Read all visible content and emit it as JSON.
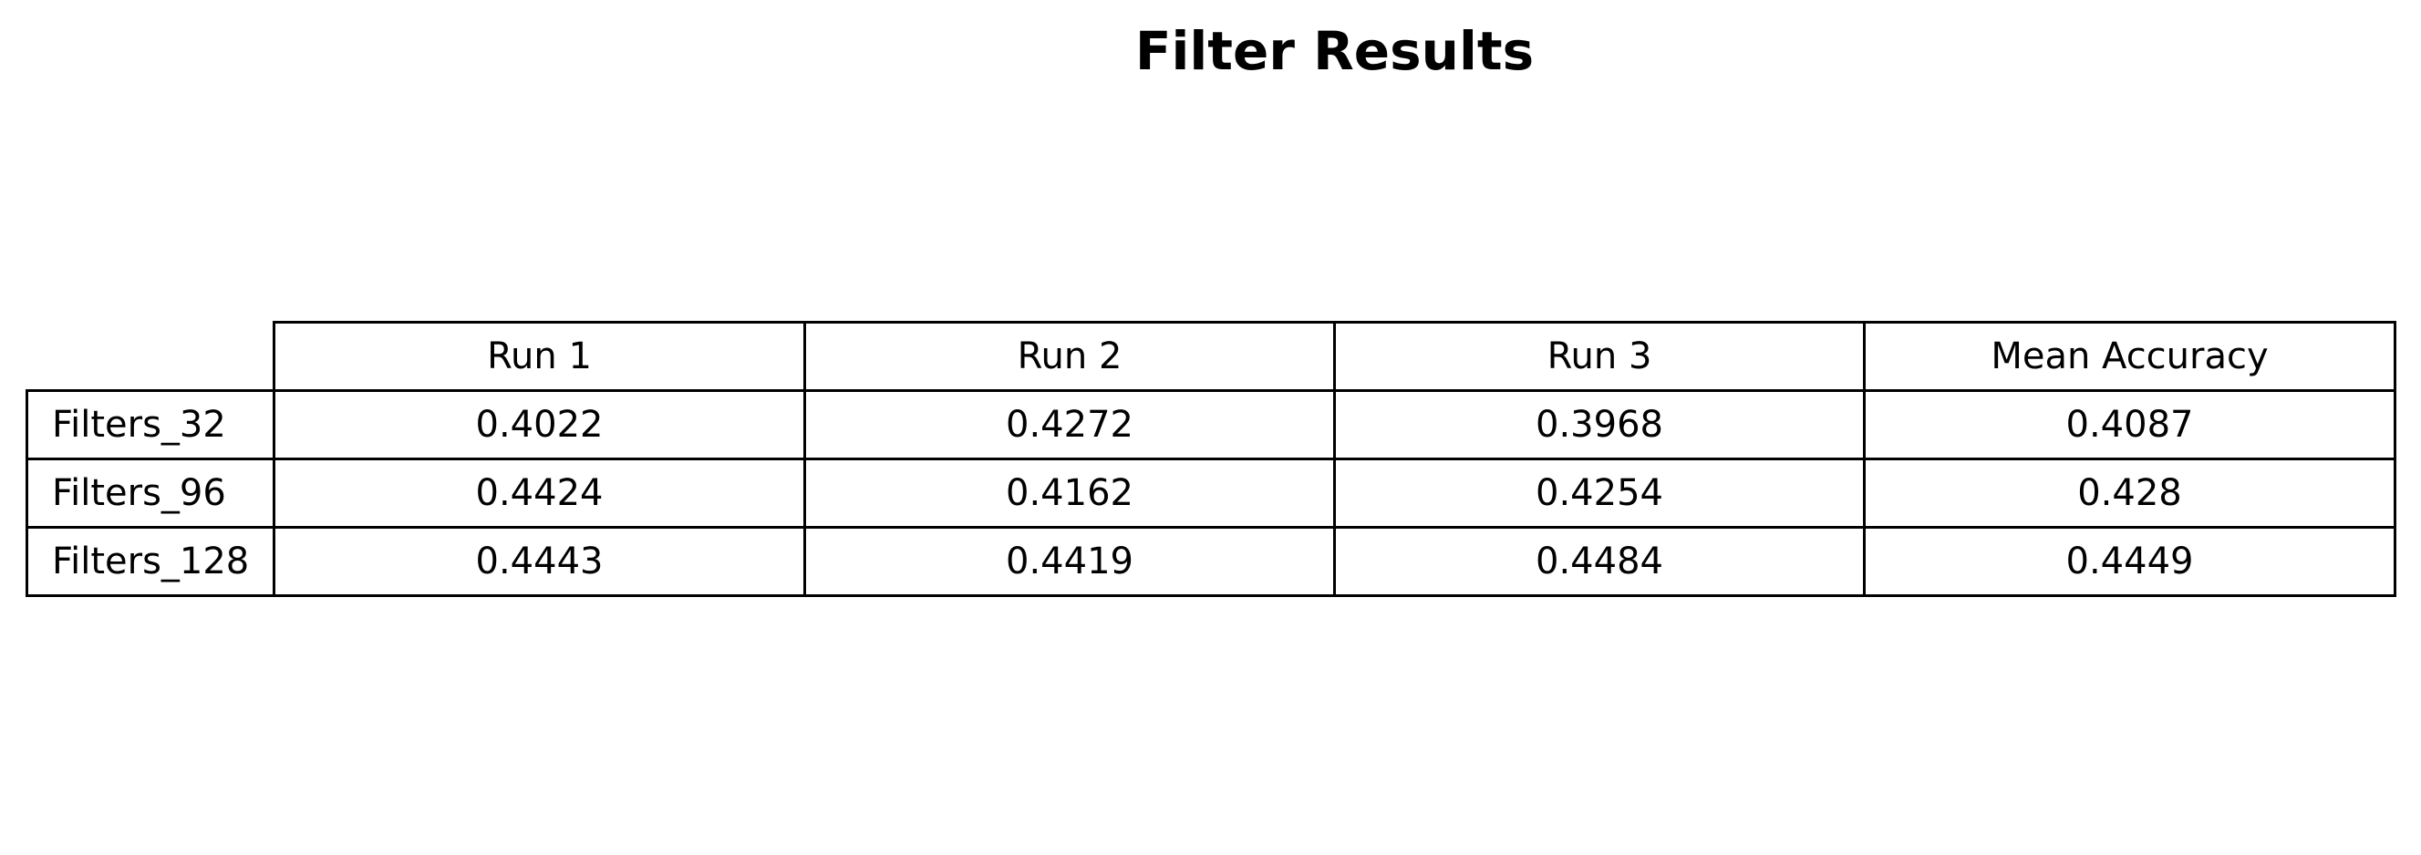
{
  "chart_data": {
    "type": "table",
    "title": "Filter Results",
    "columns": [
      "Run 1",
      "Run 2",
      "Run 3",
      "Mean Accuracy"
    ],
    "rows": [
      {
        "label": "Filters_32",
        "values": [
          "0.4022",
          "0.4272",
          "0.3968",
          "0.4087"
        ]
      },
      {
        "label": "Filters_96",
        "values": [
          "0.4424",
          "0.4162",
          "0.4254",
          "0.428"
        ]
      },
      {
        "label": "Filters_128",
        "values": [
          "0.4443",
          "0.4419",
          "0.4484",
          "0.4449"
        ]
      }
    ]
  },
  "colors": {
    "border": "#000000",
    "background": "#ffffff",
    "text": "#000000"
  }
}
